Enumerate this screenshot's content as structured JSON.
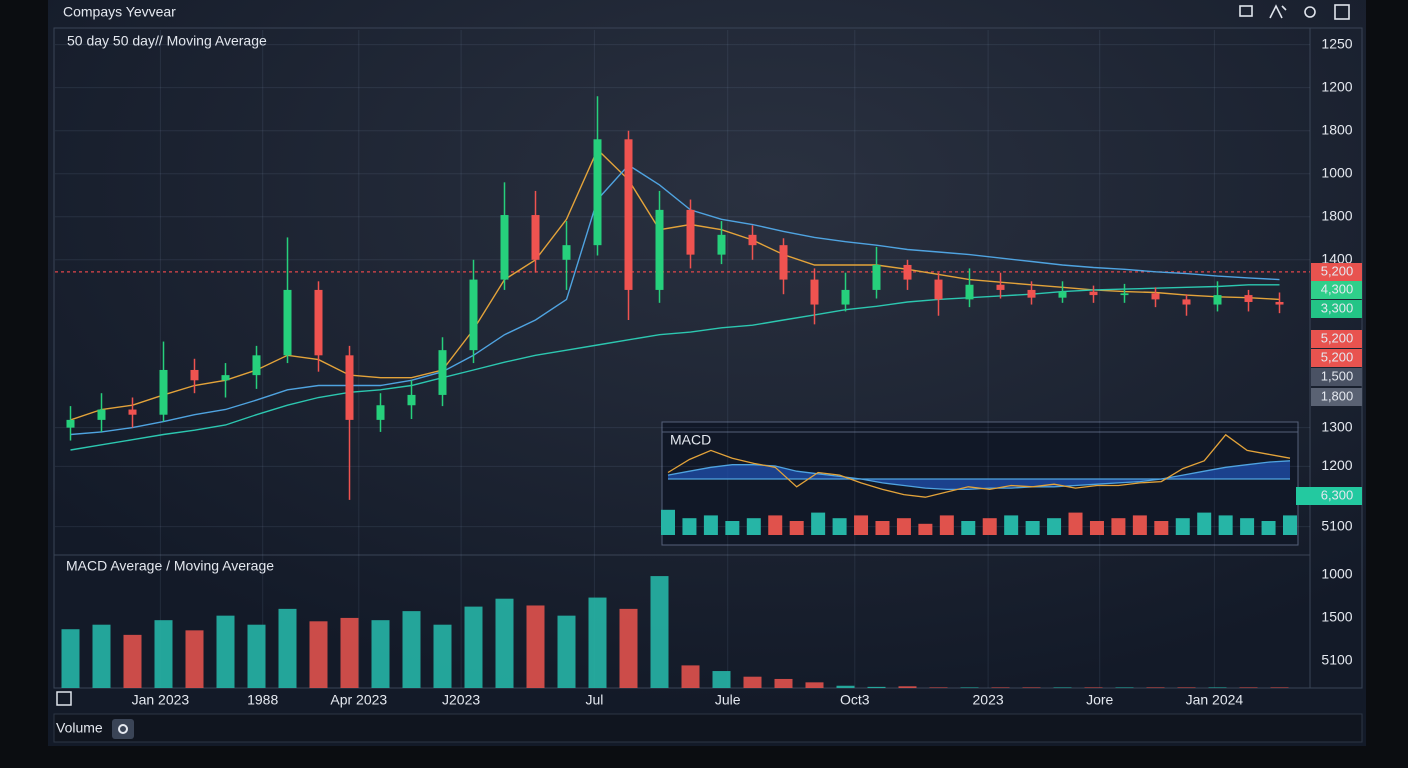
{
  "chart_data": [
    {
      "type": "candlestick",
      "title": "Compays Yevvear",
      "subtitle": "50 day 50 day// Moving Average",
      "open": [
        805,
        814,
        826,
        820,
        872,
        860,
        866,
        889,
        965,
        889,
        814,
        831,
        843,
        895,
        977,
        1052,
        1000,
        1017,
        1140,
        965,
        1058,
        1006,
        1029,
        1017,
        977,
        948,
        965,
        994,
        977,
        954,
        971,
        965,
        956,
        963,
        959,
        961,
        954,
        948,
        959,
        951
      ],
      "high": [
        830,
        845,
        840,
        905,
        885,
        880,
        900,
        1026,
        975,
        900,
        845,
        860,
        910,
        1000,
        1090,
        1080,
        1045,
        1190,
        1150,
        1080,
        1070,
        1045,
        1040,
        1025,
        990,
        985,
        1015,
        1000,
        985,
        990,
        985,
        975,
        975,
        970,
        972,
        968,
        960,
        975,
        965,
        962
      ],
      "low": [
        790,
        800,
        805,
        812,
        845,
        840,
        850,
        880,
        870,
        721,
        800,
        815,
        830,
        880,
        965,
        985,
        965,
        1005,
        930,
        950,
        990,
        995,
        1000,
        960,
        925,
        940,
        955,
        965,
        935,
        945,
        955,
        948,
        950,
        950,
        950,
        945,
        935,
        940,
        940,
        938
      ],
      "close": [
        814,
        826,
        820,
        872,
        860,
        866,
        889,
        965,
        889,
        814,
        831,
        843,
        895,
        977,
        1052,
        1000,
        1017,
        1140,
        965,
        1058,
        1006,
        1029,
        1017,
        977,
        948,
        965,
        994,
        977,
        954,
        971,
        965,
        956,
        963,
        959,
        961,
        954,
        948,
        959,
        951,
        948
      ],
      "up_color": "#26d07c",
      "down_color": "#ef5350",
      "lines": [
        {
          "color": "#e3a33a",
          "values": [
            814,
            826,
            831,
            843,
            854,
            860,
            872,
            889,
            884,
            866,
            863,
            863,
            872,
            919,
            977,
            1000,
            1047,
            1128,
            1093,
            1035,
            1041,
            1035,
            1023,
            1006,
            994,
            994,
            994,
            989,
            983,
            977,
            974,
            971,
            968,
            965,
            963,
            962,
            959,
            957,
            956,
            954
          ]
        },
        {
          "color": "#4fa3e0",
          "values": [
            797,
            800,
            805,
            812,
            820,
            826,
            837,
            849,
            854,
            854,
            854,
            860,
            870,
            889,
            913,
            930,
            954,
            1070,
            1110,
            1087,
            1058,
            1047,
            1041,
            1033,
            1026,
            1021,
            1017,
            1012,
            1009,
            1006,
            1002,
            998,
            994,
            991,
            989,
            986,
            984,
            981,
            979,
            977
          ]
        },
        {
          "color": "#2cc7b0",
          "values": [
            779,
            785,
            791,
            797,
            802,
            808,
            820,
            831,
            840,
            846,
            849,
            854,
            863,
            872,
            881,
            889,
            895,
            901,
            907,
            913,
            916,
            921,
            924,
            930,
            936,
            942,
            946,
            951,
            954,
            956,
            958,
            960,
            963,
            965,
            966,
            967,
            968,
            969,
            971,
            971
          ]
        }
      ],
      "hline": {
        "value": 986,
        "color": "#e0464a"
      },
      "price_tags": [
        {
          "label": "5,200",
          "color": "#e8534f"
        },
        {
          "label": "4,300",
          "color": "#2fcf8a"
        },
        {
          "label": "3,300",
          "color": "#23c486"
        },
        {
          "label": "5,200",
          "color": "#e8534f"
        },
        {
          "label": "5,200",
          "color": "#e8534f"
        },
        {
          "label": "1,500",
          "color": "#4a5264"
        },
        {
          "label": "1,800",
          "color": "#5a6273"
        },
        {
          "label": "6,300",
          "color": "#23c9a0"
        }
      ],
      "xlim": [
        -0.5,
        39.5
      ],
      "xticks": [
        {
          "value": 2.9,
          "label": "Jan 2023"
        },
        {
          "value": 6.2,
          "label": "1988"
        },
        {
          "value": 9.3,
          "label": "Apr 2023"
        },
        {
          "value": 12.6,
          "label": "J2023"
        },
        {
          "value": 16.9,
          "label": "Jul"
        },
        {
          "value": 21.2,
          "label": "Jule"
        },
        {
          "value": 25.3,
          "label": "Oct3"
        },
        {
          "value": 29.6,
          "label": "2023"
        },
        {
          "value": 33.2,
          "label": "Jore"
        },
        {
          "value": 36.9,
          "label": "Jan 2024"
        }
      ],
      "ylim": [
        657,
        1267
      ],
      "yticks": [
        1250,
        1200,
        {
          "value": 1150,
          "label": "1800"
        },
        {
          "value": 1100,
          "label": "1000"
        },
        {
          "value": 1050,
          "label": "1800"
        },
        {
          "value": 1000,
          "label": "1400"
        },
        {
          "value": 805,
          "label": "1300"
        },
        {
          "value": 760,
          "label": "1200"
        },
        {
          "value": 690,
          "label": "5100"
        }
      ],
      "grid": true
    },
    {
      "type": "bar",
      "title": "MACD Average / Moving Average",
      "values": [
        520,
        560,
        470,
        600,
        510,
        640,
        560,
        700,
        590,
        620,
        600,
        680,
        560,
        720,
        790,
        730,
        640,
        800,
        700,
        990,
        200,
        150,
        100,
        80,
        50,
        20,
        10,
        15,
        5,
        5,
        5,
        5,
        5,
        5,
        5,
        5,
        5,
        5,
        5,
        5
      ],
      "ylim": [
        0,
        1150
      ],
      "yticks": [
        1000,
        {
          "value": 620,
          "label": "1500"
        },
        {
          "value": 240,
          "label": "5100"
        }
      ]
    },
    {
      "type": "macd",
      "title": "MACD",
      "macd": [
        0.5,
        1.5,
        2.2,
        1.6,
        1.2,
        0.9,
        -0.6,
        0.5,
        0.3,
        -0.3,
        -0.8,
        -1.2,
        -1.4,
        -1.0,
        -0.6,
        -0.8,
        -0.5,
        -0.6,
        -0.4,
        -0.7,
        -0.5,
        -0.5,
        -0.3,
        -0.2,
        0.8,
        1.4,
        3.4,
        2.2,
        1.9,
        1.6
      ],
      "signal": [
        0.3,
        0.6,
        0.9,
        1.1,
        1.1,
        1.0,
        0.6,
        0.4,
        0.2,
        0.0,
        -0.3,
        -0.5,
        -0.7,
        -0.8,
        -0.8,
        -0.7,
        -0.7,
        -0.6,
        -0.6,
        -0.5,
        -0.4,
        -0.3,
        -0.2,
        0.0,
        0.3,
        0.6,
        0.9,
        1.1,
        1.3,
        1.4
      ],
      "macd_color": "#e3a33a",
      "signal_color": "#4fa3e0",
      "fill_color": "#1f4fb0",
      "ylim": [
        -2,
        3
      ],
      "histogram": [
        9,
        6,
        7,
        5,
        6,
        7,
        5,
        8,
        6,
        7,
        5,
        6,
        4,
        7,
        5,
        6,
        7,
        5,
        6,
        8,
        5,
        6,
        7,
        5,
        6,
        8,
        7,
        6,
        5,
        7
      ],
      "hist_ylim": [
        0,
        10
      ]
    }
  ],
  "footer": {
    "button": "Volume"
  }
}
